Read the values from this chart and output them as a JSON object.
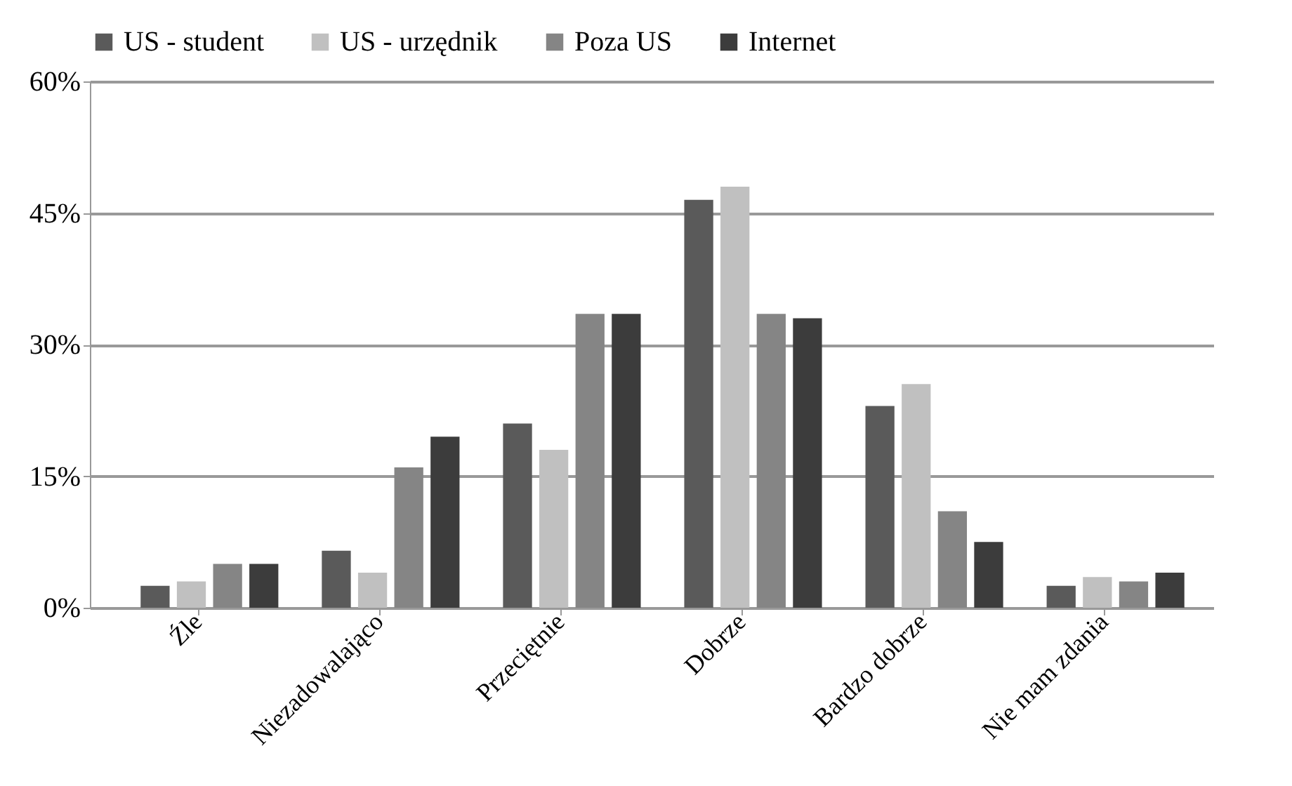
{
  "chart_data": {
    "type": "bar",
    "categories": [
      "Źle",
      "Niezadowalająco",
      "Przeciętnie",
      "Dobrze",
      "Bardzo dobrze",
      "Nie mam zdania"
    ],
    "series": [
      {
        "name": "US - student",
        "color": "#5a5a5a",
        "values": [
          2.5,
          6.5,
          21,
          46.5,
          23,
          2.5
        ]
      },
      {
        "name": "US - urzędnik",
        "color": "#c0c0c0",
        "values": [
          3,
          4,
          18,
          48,
          25.5,
          3.5
        ]
      },
      {
        "name": "Poza US",
        "color": "#858585",
        "values": [
          5,
          16,
          33.5,
          33.5,
          11,
          3
        ]
      },
      {
        "name": "Internet",
        "color": "#3c3c3c",
        "values": [
          5,
          19.5,
          33.5,
          33,
          7.5,
          4
        ]
      }
    ],
    "ylim": [
      0,
      60
    ],
    "yticks": [
      {
        "value": 0,
        "label": "0%"
      },
      {
        "value": 15,
        "label": "15%"
      },
      {
        "value": 30,
        "label": "30%"
      },
      {
        "value": 45,
        "label": "45%"
      },
      {
        "value": 60,
        "label": "60%"
      }
    ],
    "grid": "y",
    "legend": "top"
  }
}
